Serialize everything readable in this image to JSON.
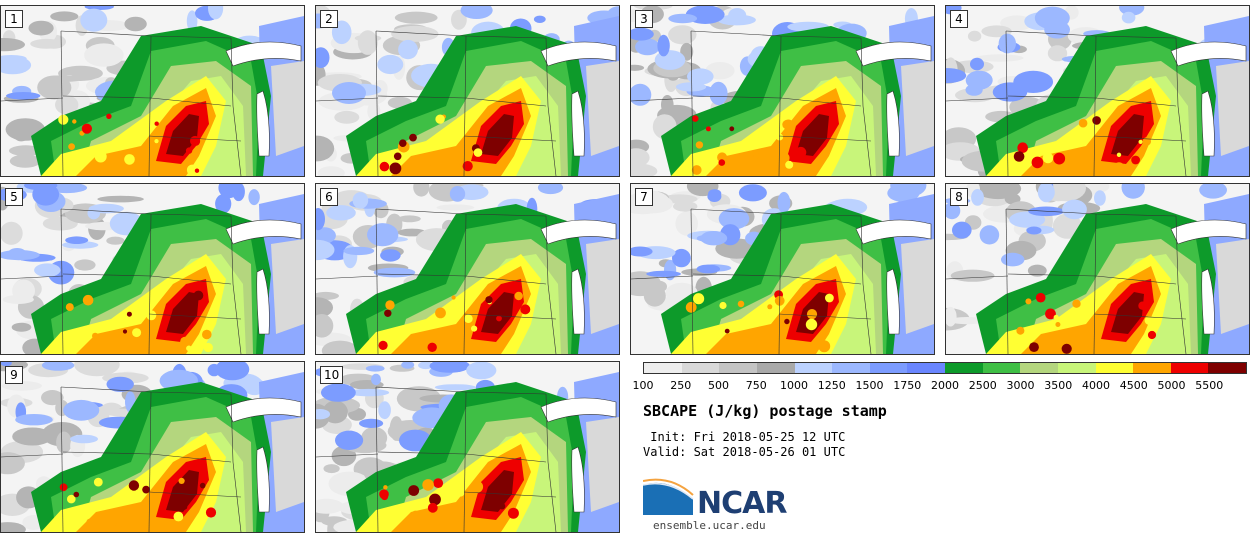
{
  "panels": [
    {
      "label": "1"
    },
    {
      "label": "2"
    },
    {
      "label": "3"
    },
    {
      "label": "4"
    },
    {
      "label": "5"
    },
    {
      "label": "6"
    },
    {
      "label": "7"
    },
    {
      "label": "8"
    },
    {
      "label": "9"
    },
    {
      "label": "10"
    }
  ],
  "colorbar": {
    "colors": [
      "#eeeeee",
      "#d9d9d9",
      "#c4c4c4",
      "#a9a9a9",
      "#bcd2ff",
      "#9cb8ff",
      "#7c9cff",
      "#6a86ff",
      "#0d9a2a",
      "#3fbf45",
      "#b4d67e",
      "#c8f57a",
      "#ffff33",
      "#ffa500",
      "#ee0000",
      "#7e0000"
    ],
    "tick_labels": [
      "100",
      "250",
      "500",
      "750",
      "1000",
      "1250",
      "1500",
      "1750",
      "2000",
      "2500",
      "3000",
      "3500",
      "4000",
      "4500",
      "5000",
      "5500"
    ]
  },
  "title": "SBCAPE (J/kg) postage stamp",
  "init_line": " Init: Fri 2018-05-25 12 UTC",
  "valid_line": "Valid: Sat 2018-05-26 01 UTC",
  "logo": {
    "word": "NCAR",
    "url": "ensemble.ucar.edu",
    "color": "#1e3f73",
    "accent": "#1a6fb5"
  }
}
